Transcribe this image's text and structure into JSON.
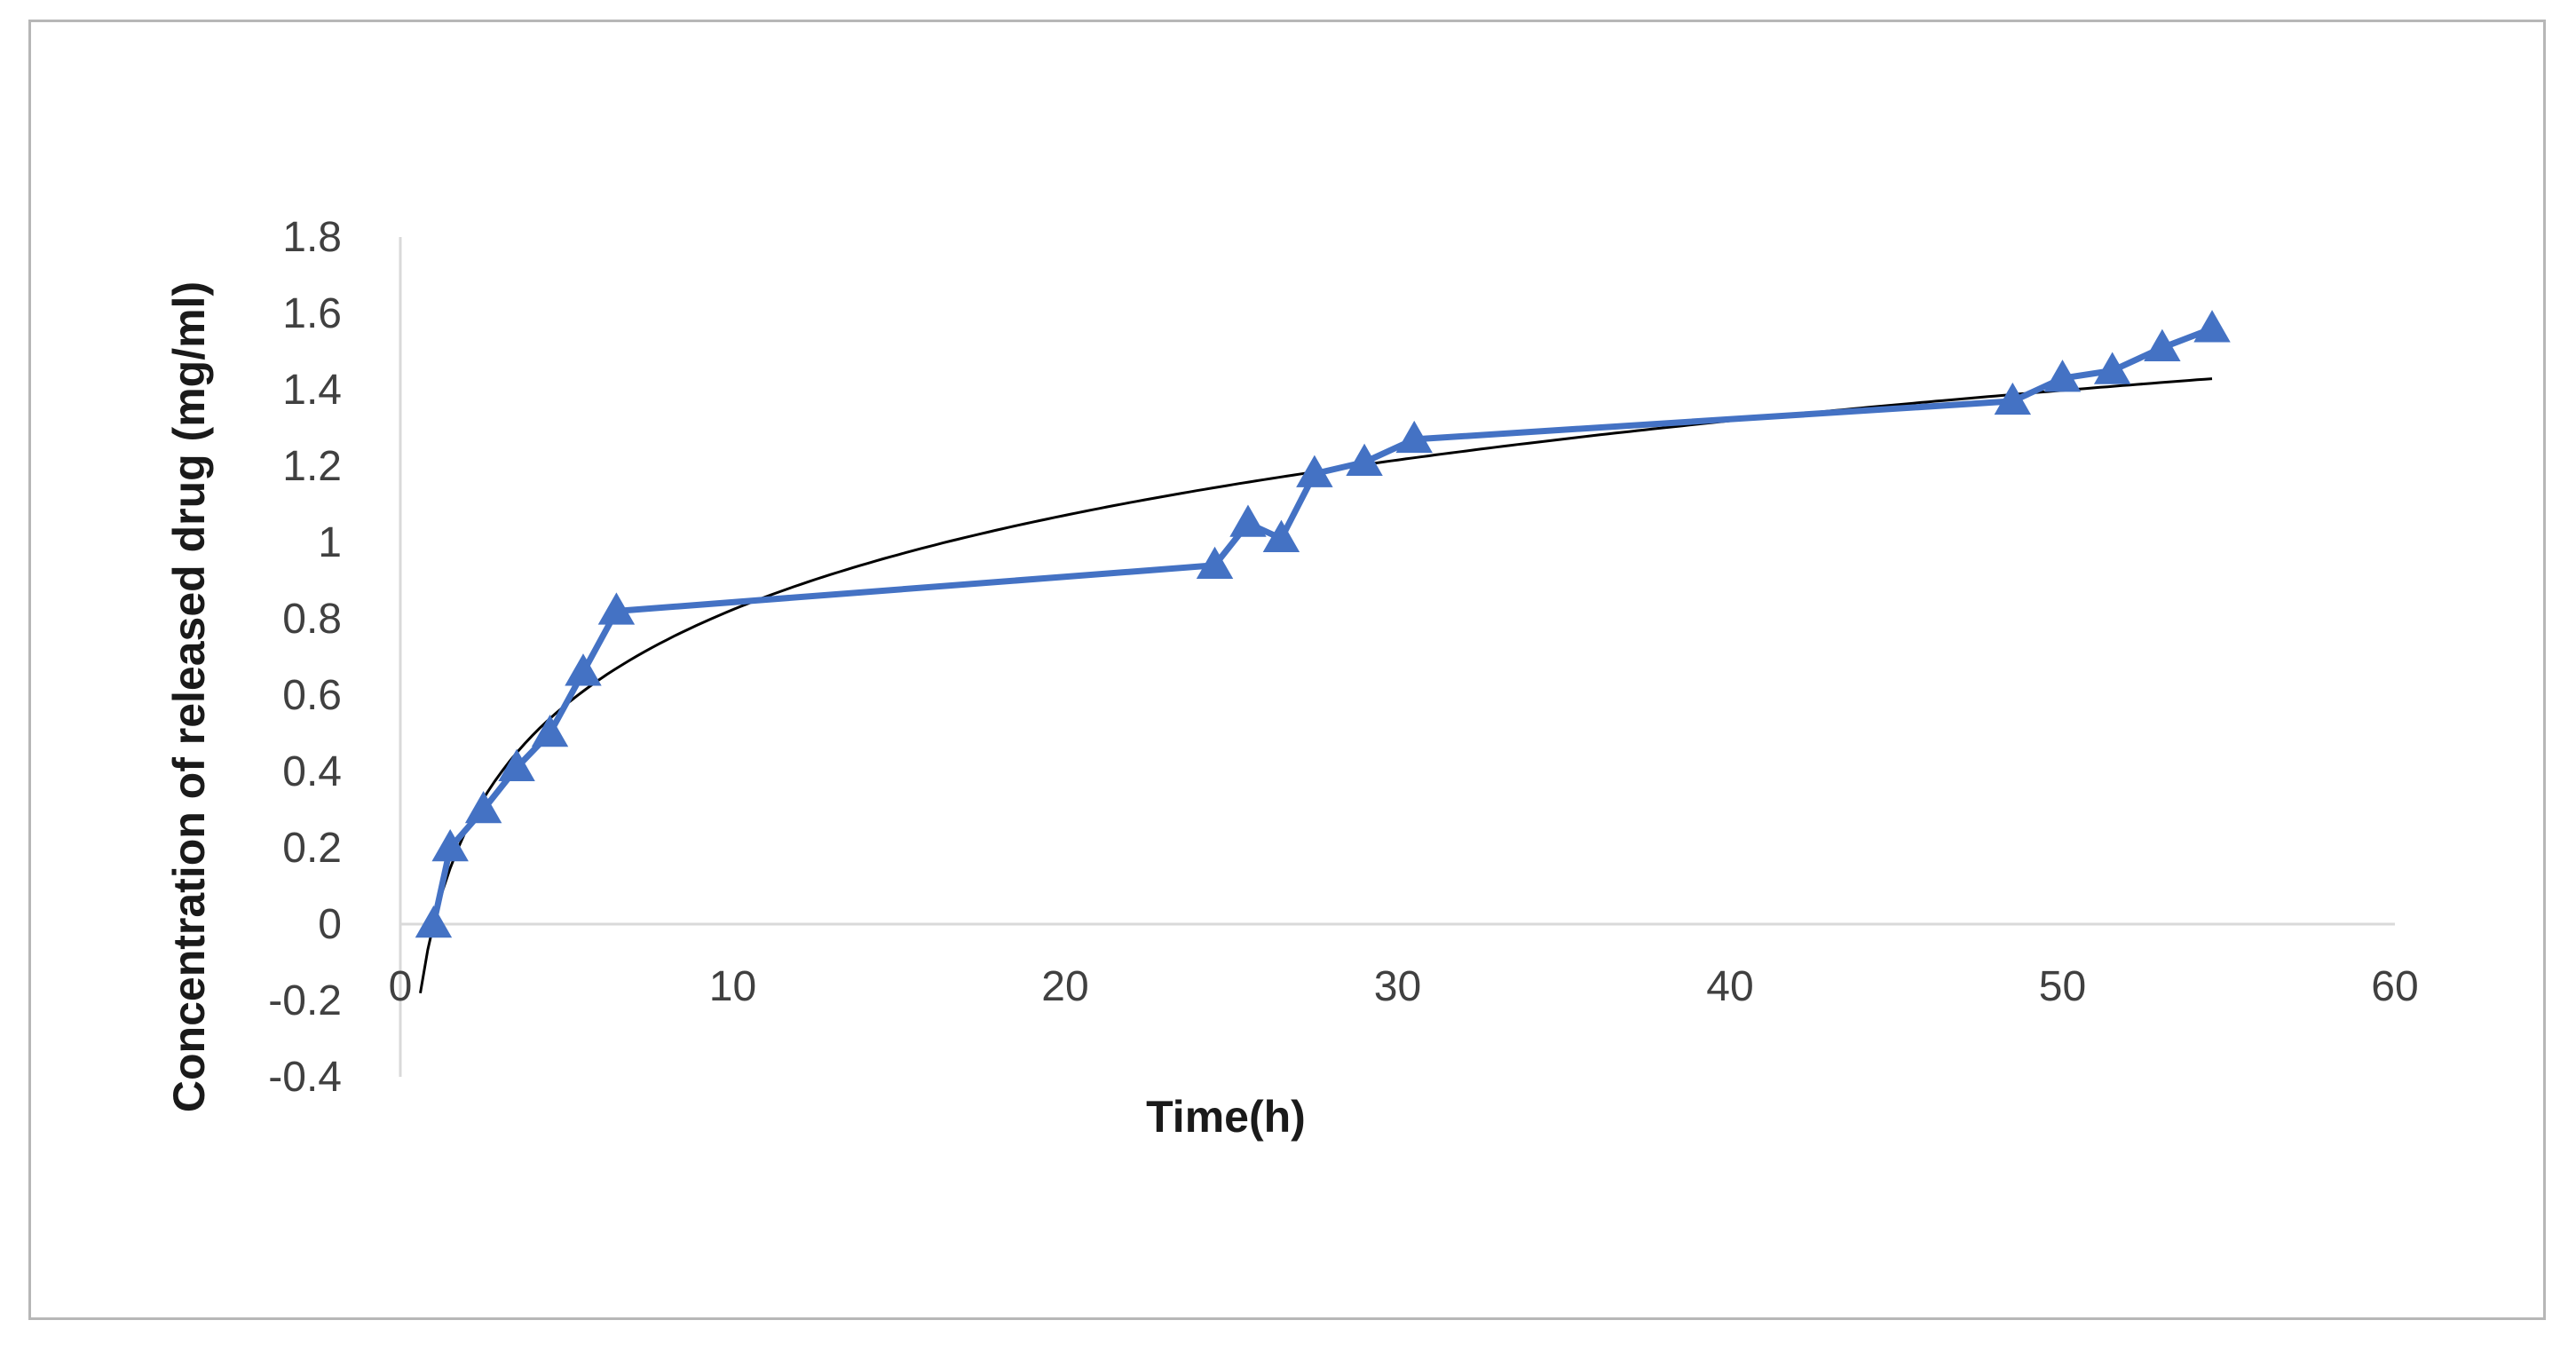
{
  "chart_data": {
    "type": "line",
    "title": "",
    "xlabel": "Time(h)",
    "ylabel": "Concentration of released drug (mg/ml)",
    "xlim": [
      0,
      60
    ],
    "ylim": [
      -0.4,
      1.8
    ],
    "x_ticks": [
      "0",
      "10",
      "20",
      "30",
      "40",
      "50",
      "60"
    ],
    "y_ticks": [
      "1.8",
      "1.6",
      "1.4",
      "1.2",
      "1",
      "0.8",
      "0.6",
      "0.4",
      "0.2",
      "0",
      "-0.2",
      "-0.4"
    ],
    "grid": false,
    "legend": "none",
    "series": [
      {
        "marker": "triangle",
        "color": "#4472C4",
        "x": [
          1,
          1.5,
          2.5,
          3.5,
          4.5,
          5.5,
          6.5,
          24.5,
          25.5,
          26.5,
          27.5,
          29,
          30.5,
          48.5,
          50,
          51.5,
          53,
          54.5
        ],
        "y": [
          0,
          0.2,
          0.3,
          0.41,
          0.5,
          0.66,
          0.82,
          0.94,
          1.05,
          1.01,
          1.18,
          1.21,
          1.27,
          1.37,
          1.43,
          1.45,
          1.51,
          1.56
        ]
      }
    ],
    "trendline": {
      "type": "logarithmic",
      "color": "#000000",
      "x_range": [
        0.6,
        54.5
      ]
    }
  }
}
